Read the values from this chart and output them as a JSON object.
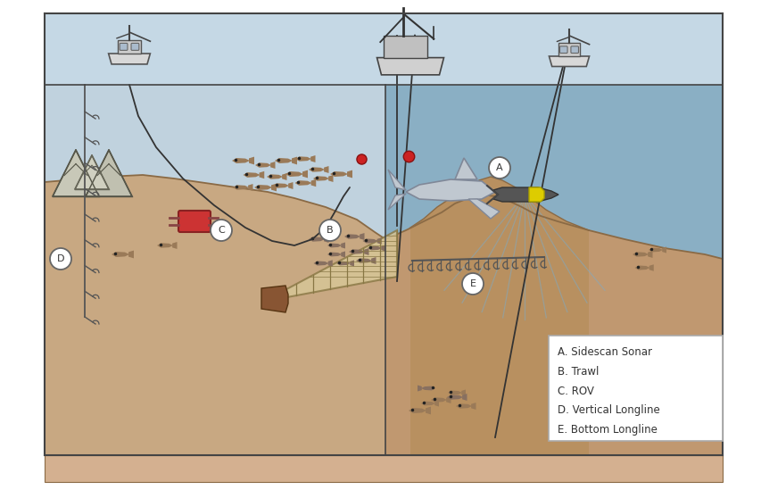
{
  "bg_color": "#ffffff",
  "ocean_left_color": "#b8cdd8",
  "ocean_right_color": "#8aafc4",
  "ocean_top_color": "#c5d8e5",
  "seafloor_sandy": "#c8a882",
  "seafloor_deep": "#c0956a",
  "seafloor_front": "#d4b898",
  "box_edge_color": "#444444",
  "line_color": "#333333",
  "legend_items": [
    "A. Sidescan Sonar",
    "B. Trawl",
    "C. ROV",
    "D. Vertical Longline",
    "E. Bottom Longline"
  ],
  "figsize": [
    8.54,
    5.49
  ],
  "dpi": 100
}
